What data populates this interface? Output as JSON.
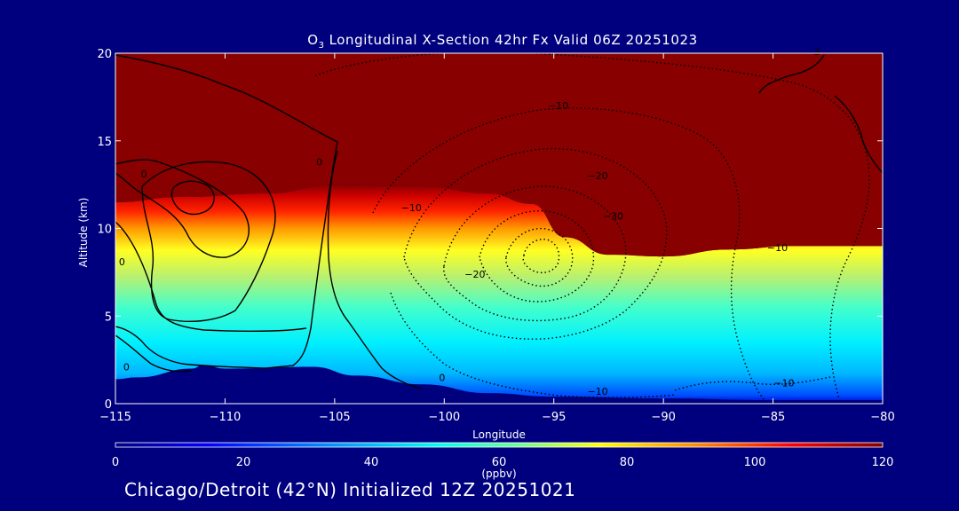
{
  "chart_data": {
    "type": "contour",
    "title": "Longitudinal X-Section 42hr  Fx Valid 06Z 20251023",
    "title_species_main": "O",
    "title_species_sub": "3",
    "xlabel": "Longitude",
    "ylabel": "Altitude (km)",
    "xlim": [
      -115,
      -80
    ],
    "ylim": [
      0,
      20
    ],
    "x_ticks": [
      -115,
      -110,
      -105,
      -100,
      -95,
      -90,
      -85,
      -80
    ],
    "x_tick_labels": [
      "−115",
      "−110",
      "−105",
      "−100",
      "−95",
      "−90",
      "−85",
      "−80"
    ],
    "y_ticks": [
      0,
      5,
      10,
      15,
      20
    ],
    "y_tick_labels": [
      "0",
      "5",
      "10",
      "15",
      "20"
    ],
    "colorbar": {
      "min": 0,
      "max": 120,
      "ticks": [
        0,
        20,
        40,
        60,
        80,
        100,
        120
      ],
      "tick_labels": [
        "0",
        "20",
        "40",
        "60",
        "80",
        "100",
        "120"
      ],
      "unit": "(ppbv)",
      "colors": [
        "#000087",
        "#0000ff",
        "#0090ff",
        "#00ffee",
        "#66ff99",
        "#ffff00",
        "#ff8800",
        "#ff0000",
        "#880000"
      ]
    },
    "filled_field": {
      "variable": "O3 (ppbv)",
      "tropopause_height_km": [
        {
          "lon": -115,
          "alt": 11.5
        },
        {
          "lon": -112,
          "alt": 11.8
        },
        {
          "lon": -108,
          "alt": 12.0
        },
        {
          "lon": -105,
          "alt": 12.5
        },
        {
          "lon": -101,
          "alt": 12.4
        },
        {
          "lon": -98,
          "alt": 12.0
        },
        {
          "lon": -96,
          "alt": 11.4
        },
        {
          "lon": -94.5,
          "alt": 9.5
        },
        {
          "lon": -92.5,
          "alt": 8.5
        },
        {
          "lon": -90,
          "alt": 8.4
        },
        {
          "lon": -87,
          "alt": 8.8
        },
        {
          "lon": -84,
          "alt": 9.0
        },
        {
          "lon": -80,
          "alt": 9.0
        }
      ],
      "stratosphere_value": 120,
      "surface_value": 0
    },
    "terrain_height_km": [
      {
        "lon": -115,
        "alt": 1.4
      },
      {
        "lon": -114,
        "alt": 1.5
      },
      {
        "lon": -111.5,
        "alt": 2.0
      },
      {
        "lon": -111,
        "alt": 2.2
      },
      {
        "lon": -110,
        "alt": 2.0
      },
      {
        "lon": -106,
        "alt": 2.1
      },
      {
        "lon": -104,
        "alt": 1.6
      },
      {
        "lon": -101,
        "alt": 1.1
      },
      {
        "lon": -98,
        "alt": 0.6
      },
      {
        "lon": -95,
        "alt": 0.4
      },
      {
        "lon": -90,
        "alt": 0.3
      },
      {
        "lon": -85,
        "alt": 0.2
      },
      {
        "lon": -80,
        "alt": 0.2
      }
    ],
    "contour_labels": [
      {
        "text": "0",
        "lon": -113.7,
        "alt": 12.9
      },
      {
        "text": "0",
        "lon": -105.7,
        "alt": 13.6
      },
      {
        "text": "0",
        "lon": -114.7,
        "alt": 7.9
      },
      {
        "text": "0",
        "lon": -114.5,
        "alt": 1.9
      },
      {
        "text": "0",
        "lon": -100.1,
        "alt": 1.3
      },
      {
        "text": "−10",
        "lon": -101.5,
        "alt": 11.0
      },
      {
        "text": "−10",
        "lon": -94.8,
        "alt": 16.8
      },
      {
        "text": "−20",
        "lon": -93.0,
        "alt": 12.8
      },
      {
        "text": "−30",
        "lon": -92.3,
        "alt": 10.5
      },
      {
        "text": "−20",
        "lon": -98.6,
        "alt": 7.2
      },
      {
        "text": "−10",
        "lon": -84.8,
        "alt": 8.7
      },
      {
        "text": "−10",
        "lon": -93.0,
        "alt": 0.5
      },
      {
        "text": "−10",
        "lon": -84.5,
        "alt": 1.0
      },
      {
        "text": "3",
        "lon": -83.0,
        "alt": 19.9
      }
    ]
  },
  "footer": {
    "initialized_text": "Chicago/Detroit (42°N) Initialized 12Z 20251021"
  }
}
